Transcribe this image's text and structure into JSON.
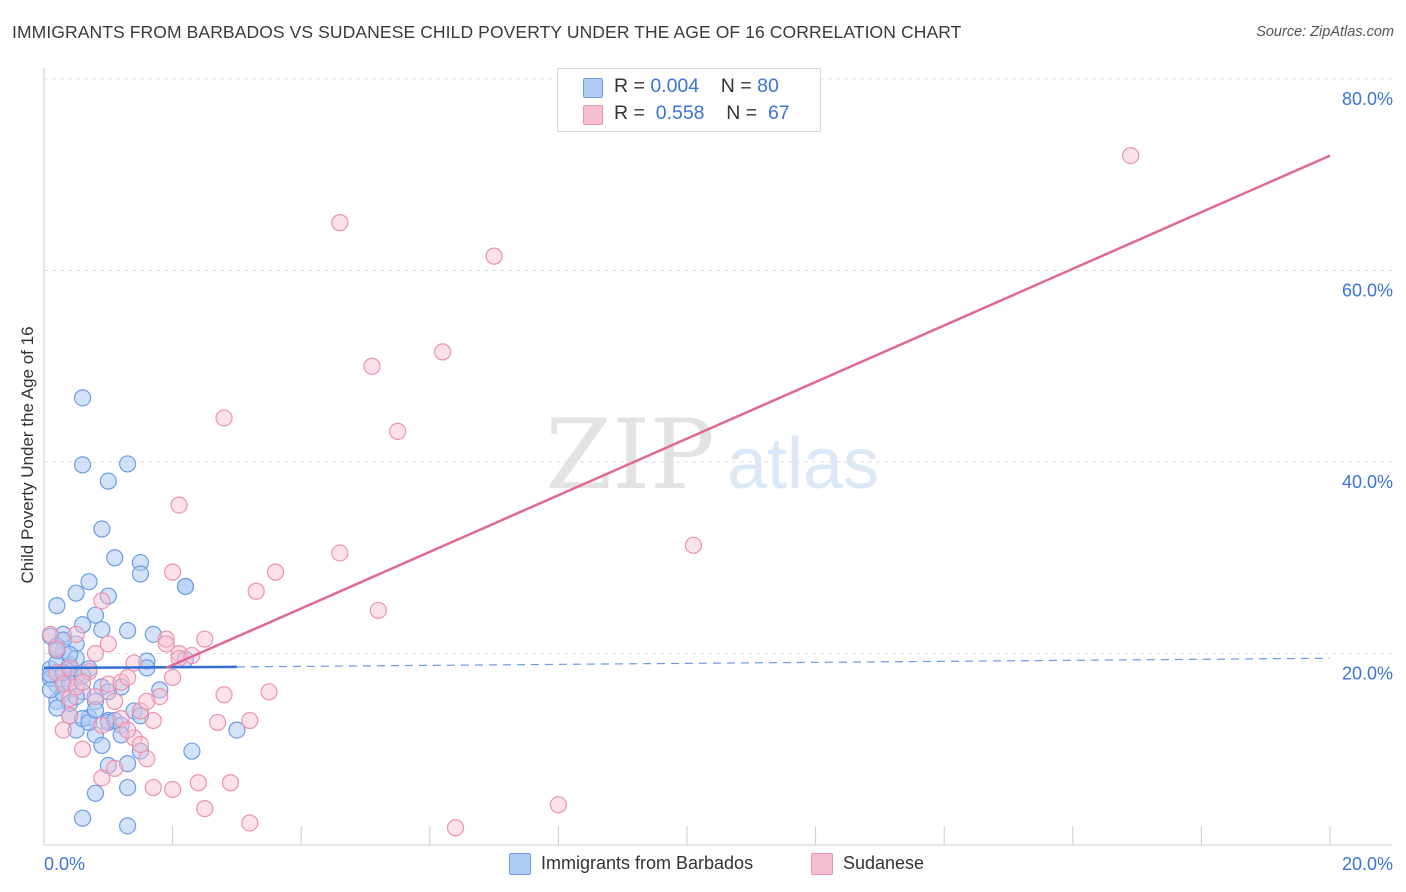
{
  "title": "IMMIGRANTS FROM BARBADOS VS SUDANESE CHILD POVERTY UNDER THE AGE OF 16 CORRELATION CHART",
  "source": "Source: ZipAtlas.com",
  "watermark": {
    "zip": "ZIP",
    "atlas": "atlas"
  },
  "colors": {
    "blue_fill": "#aecbf3",
    "blue_stroke": "#6d9ce4",
    "blue_line": "#2f6fd6",
    "pink_fill": "#f6bfd0",
    "pink_stroke": "#ec92b0",
    "pink_line": "#e06892",
    "axis_text": "#3b74d4",
    "grid": "#dddddd"
  },
  "stats": [
    {
      "r_label": "R =",
      "r_value": "0.004",
      "n_label": "N =",
      "n_value": "80"
    },
    {
      "r_label": "R =",
      "r_value": "0.558",
      "n_label": "N =",
      "n_value": "67"
    }
  ],
  "chart_data": {
    "type": "scatter",
    "title": "IMMIGRANTS FROM BARBADOS VS SUDANESE CHILD POVERTY UNDER THE AGE OF 16 CORRELATION CHART",
    "xlabel": "",
    "ylabel": "Child Poverty Under the Age of 16",
    "xlim": [
      0,
      20
    ],
    "ylim": [
      0,
      80
    ],
    "x_tick_labels": [
      "0.0%",
      "20.0%"
    ],
    "y_ticks": [
      20,
      40,
      60,
      80
    ],
    "y_tick_labels": [
      "20.0%",
      "40.0%",
      "60.0%",
      "80.0%"
    ],
    "grid": true,
    "legend": "bottom-center",
    "series": [
      {
        "name": "Immigrants from Barbados",
        "R": 0.004,
        "N": 80,
        "trend": {
          "x0": 0,
          "y0": 18.5,
          "x1": 3.0,
          "y1": 18.6,
          "dashed_to_x": 20,
          "dashed_y": 19.5
        },
        "points": [
          [
            0.1,
            18.4
          ],
          [
            0.2,
            16.7
          ],
          [
            0.3,
            20.2
          ],
          [
            0.1,
            17.4
          ],
          [
            0.4,
            18.1
          ],
          [
            0.2,
            15.0
          ],
          [
            0.5,
            21.0
          ],
          [
            0.3,
            22.0
          ],
          [
            0.6,
            23.0
          ],
          [
            0.2,
            25.0
          ],
          [
            0.5,
            26.3
          ],
          [
            0.7,
            27.5
          ],
          [
            0.8,
            24.0
          ],
          [
            0.9,
            22.5
          ],
          [
            1.0,
            26.0
          ],
          [
            1.1,
            30.0
          ],
          [
            0.9,
            33.0
          ],
          [
            1.0,
            38.0
          ],
          [
            0.6,
            39.7
          ],
          [
            1.3,
            39.8
          ],
          [
            0.6,
            46.7
          ],
          [
            1.5,
            29.5
          ],
          [
            1.5,
            28.3
          ],
          [
            1.7,
            22.0
          ],
          [
            1.6,
            19.2
          ],
          [
            1.6,
            18.5
          ],
          [
            2.2,
            19.4
          ],
          [
            2.2,
            27.0
          ],
          [
            2.2,
            27.0
          ],
          [
            1.3,
            22.4
          ],
          [
            0.4,
            13.5
          ],
          [
            0.5,
            12.0
          ],
          [
            0.7,
            13.3
          ],
          [
            0.8,
            15.0
          ],
          [
            1.0,
            13.0
          ],
          [
            0.8,
            11.5
          ],
          [
            0.9,
            10.4
          ],
          [
            1.0,
            12.8
          ],
          [
            1.1,
            13.0
          ],
          [
            1.2,
            12.5
          ],
          [
            1.2,
            11.5
          ],
          [
            1.4,
            14.0
          ],
          [
            1.3,
            8.5
          ],
          [
            1.5,
            13.5
          ],
          [
            1.8,
            16.2
          ],
          [
            2.3,
            9.8
          ],
          [
            3.0,
            12.0
          ],
          [
            1.5,
            9.8
          ],
          [
            1.0,
            8.3
          ],
          [
            0.8,
            5.4
          ],
          [
            1.3,
            6.0
          ],
          [
            0.6,
            2.8
          ],
          [
            1.3,
            2.0
          ],
          [
            0.2,
            19.0
          ],
          [
            0.3,
            17.0
          ],
          [
            0.4,
            18.8
          ],
          [
            0.5,
            17.5
          ],
          [
            0.6,
            16.0
          ],
          [
            0.1,
            21.8
          ],
          [
            0.2,
            20.8
          ],
          [
            0.3,
            15.8
          ],
          [
            0.4,
            14.8
          ],
          [
            0.6,
            13.2
          ],
          [
            0.7,
            18.4
          ],
          [
            0.9,
            16.5
          ],
          [
            1.2,
            16.5
          ],
          [
            0.5,
            19.5
          ],
          [
            0.1,
            16.2
          ],
          [
            0.3,
            21.4
          ],
          [
            0.4,
            16.9
          ],
          [
            0.2,
            14.3
          ],
          [
            0.6,
            17.7
          ],
          [
            1.0,
            16.0
          ],
          [
            0.7,
            12.8
          ],
          [
            0.4,
            19.9
          ],
          [
            0.1,
            17.8
          ],
          [
            0.3,
            18.0
          ],
          [
            0.5,
            15.5
          ],
          [
            0.2,
            20.3
          ],
          [
            0.8,
            14.1
          ]
        ]
      },
      {
        "name": "Sudanese",
        "R": 0.558,
        "N": 67,
        "trend": {
          "x0": 1.9,
          "y0": 18.5,
          "x1": 20,
          "y1": 72.0
        },
        "points": [
          [
            0.2,
            18.0
          ],
          [
            0.3,
            16.8
          ],
          [
            0.4,
            15.3
          ],
          [
            0.5,
            16.5
          ],
          [
            0.7,
            18.1
          ],
          [
            0.8,
            15.5
          ],
          [
            0.9,
            12.5
          ],
          [
            1.0,
            21.0
          ],
          [
            1.0,
            16.8
          ],
          [
            1.2,
            13.2
          ],
          [
            1.2,
            17.0
          ],
          [
            1.3,
            17.5
          ],
          [
            1.4,
            19.0
          ],
          [
            1.4,
            11.2
          ],
          [
            1.5,
            10.5
          ],
          [
            1.6,
            9.0
          ],
          [
            1.7,
            13.0
          ],
          [
            1.8,
            15.5
          ],
          [
            1.9,
            21.5
          ],
          [
            1.9,
            21.0
          ],
          [
            2.0,
            17.5
          ],
          [
            2.1,
            20.0
          ],
          [
            2.1,
            19.5
          ],
          [
            2.3,
            19.8
          ],
          [
            2.5,
            21.5
          ],
          [
            2.0,
            28.5
          ],
          [
            2.1,
            35.5
          ],
          [
            2.8,
            15.7
          ],
          [
            2.7,
            12.8
          ],
          [
            3.2,
            13.0
          ],
          [
            3.5,
            16.0
          ],
          [
            3.3,
            26.5
          ],
          [
            3.6,
            28.5
          ],
          [
            2.8,
            44.6
          ],
          [
            4.6,
            30.5
          ],
          [
            4.6,
            65.0
          ],
          [
            5.1,
            50.0
          ],
          [
            5.2,
            24.5
          ],
          [
            5.5,
            43.2
          ],
          [
            6.2,
            51.5
          ],
          [
            7.0,
            61.5
          ],
          [
            10.1,
            31.3
          ],
          [
            16.9,
            72.0
          ],
          [
            0.3,
            12.0
          ],
          [
            0.4,
            13.5
          ],
          [
            0.6,
            10.0
          ],
          [
            0.9,
            7.0
          ],
          [
            1.1,
            8.0
          ],
          [
            1.7,
            6.0
          ],
          [
            2.0,
            5.8
          ],
          [
            2.4,
            6.5
          ],
          [
            2.5,
            3.8
          ],
          [
            2.9,
            6.5
          ],
          [
            3.2,
            2.3
          ],
          [
            6.4,
            1.8
          ],
          [
            8.0,
            4.2
          ],
          [
            0.5,
            22.0
          ],
          [
            0.9,
            25.5
          ],
          [
            0.2,
            20.5
          ],
          [
            0.1,
            22.0
          ],
          [
            0.6,
            17.0
          ],
          [
            1.1,
            15.0
          ],
          [
            1.3,
            12.0
          ],
          [
            0.8,
            20.0
          ],
          [
            1.5,
            14.0
          ],
          [
            0.4,
            18.5
          ],
          [
            1.6,
            15.0
          ]
        ]
      }
    ]
  }
}
